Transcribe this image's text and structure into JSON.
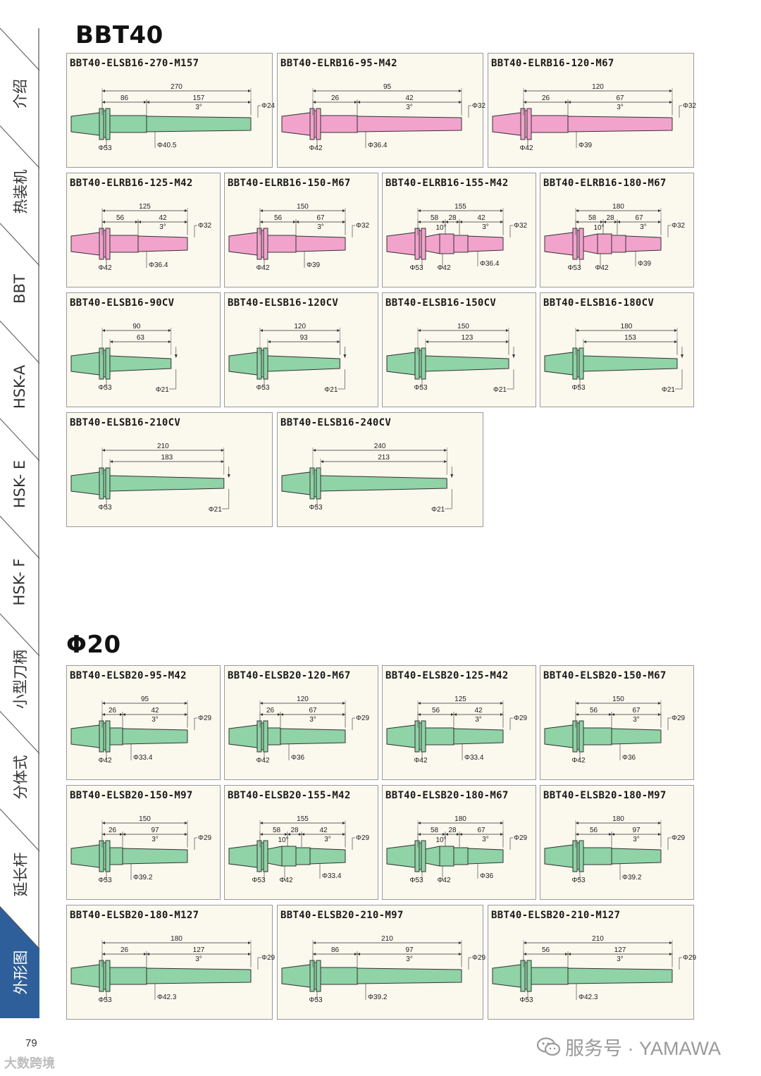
{
  "sidebar": {
    "items": [
      {
        "label": "介绍",
        "active": false
      },
      {
        "label": "热装机",
        "active": false
      },
      {
        "label": "BBT",
        "active": false
      },
      {
        "label": "HSK-A",
        "active": false
      },
      {
        "label": "HSK- E",
        "active": false
      },
      {
        "label": "HSK- F",
        "active": false
      },
      {
        "label": "小型刀柄",
        "active": false
      },
      {
        "label": "分体式",
        "active": false
      },
      {
        "label": "延长杆",
        "active": false
      },
      {
        "label": "外形图",
        "active": true
      }
    ],
    "active_color": "#2f5f9a"
  },
  "colors": {
    "green": "#8fd3a6",
    "pink": "#f2a3cc",
    "card_bg": "#fbf8ee"
  },
  "sections": [
    {
      "title": "BBT40",
      "cards": [
        {
          "model": "BBT40-ELSB16-270-M157",
          "color": "green",
          "kind": "step",
          "labels": {
            "total": "270",
            "a": "86",
            "b": "157",
            "angle": "3°",
            "tip": "Φ24",
            "flange": "Φ53",
            "body": "Φ40.5"
          }
        },
        {
          "model": "BBT40-ELRB16-95-M42",
          "color": "pink",
          "kind": "step",
          "labels": {
            "total": "95",
            "a": "26",
            "b": "42",
            "angle": "3°",
            "tip": "Φ32",
            "flange": "Φ42",
            "body": "Φ36.4"
          }
        },
        {
          "model": "BBT40-ELRB16-120-M67",
          "color": "pink",
          "kind": "step",
          "labels": {
            "total": "120",
            "a": "26",
            "b": "67",
            "angle": "3°",
            "tip": "Φ32",
            "flange": "Φ42",
            "body": "Φ39"
          }
        },
        {
          "model": "BBT40-ELRB16-125-M42",
          "color": "pink",
          "kind": "step",
          "labels": {
            "total": "125",
            "a": "56",
            "b": "42",
            "angle": "3°",
            "tip": "Φ32",
            "flange": "Φ42",
            "body": "Φ36.4"
          }
        },
        {
          "model": "BBT40-ELRB16-150-M67",
          "color": "pink",
          "kind": "step",
          "labels": {
            "total": "150",
            "a": "56",
            "b": "67",
            "angle": "3°",
            "tip": "Φ32",
            "flange": "Φ42",
            "body": "Φ39"
          }
        },
        {
          "model": "BBT40-ELRB16-155-M42",
          "color": "pink",
          "kind": "triple",
          "labels": {
            "total": "155",
            "a": "58",
            "m": "28",
            "b": "42",
            "ang10": "10°",
            "angle": "3°",
            "tip": "Φ32",
            "flange": "Φ53",
            "f2": "Φ42",
            "body": "Φ36.4"
          }
        },
        {
          "model": "BBT40-ELRB16-180-M67",
          "color": "pink",
          "kind": "triple",
          "labels": {
            "total": "180",
            "a": "58",
            "m": "28",
            "b": "67",
            "ang10": "10°",
            "angle": "3°",
            "tip": "Φ32",
            "flange": "Φ53",
            "f2": "Φ42",
            "body": "Φ39"
          }
        },
        {
          "model": "BBT40-ELSB16-90CV",
          "color": "green",
          "kind": "cv",
          "labels": {
            "total": "90",
            "inner": "63",
            "flange": "Φ53",
            "tip": "Φ21"
          }
        },
        {
          "model": "BBT40-ELSB16-120CV",
          "color": "green",
          "kind": "cv",
          "labels": {
            "total": "120",
            "inner": "93",
            "flange": "Φ53",
            "tip": "Φ21"
          }
        },
        {
          "model": "BBT40-ELSB16-150CV",
          "color": "green",
          "kind": "cv",
          "labels": {
            "total": "150",
            "inner": "123",
            "flange": "Φ53",
            "tip": "Φ21"
          }
        },
        {
          "model": "BBT40-ELSB16-180CV",
          "color": "green",
          "kind": "cv",
          "labels": {
            "total": "180",
            "inner": "153",
            "flange": "Φ53",
            "tip": "Φ21"
          }
        },
        {
          "model": "BBT40-ELSB16-210CV",
          "color": "green",
          "kind": "cv",
          "labels": {
            "total": "210",
            "inner": "183",
            "flange": "Φ53",
            "tip": "Φ21"
          }
        },
        {
          "model": "BBT40-ELSB16-240CV",
          "color": "green",
          "kind": "cv",
          "labels": {
            "total": "240",
            "inner": "213",
            "flange": "Φ53",
            "tip": "Φ21"
          }
        }
      ]
    },
    {
      "title": "Φ20",
      "cards": [
        {
          "model": "BBT40-ELSB20-95-M42",
          "color": "green",
          "kind": "step",
          "labels": {
            "total": "95",
            "a": "26",
            "b": "42",
            "angle": "3°",
            "tip": "Φ29",
            "flange": "Φ42",
            "body": "Φ33.4"
          }
        },
        {
          "model": "BBT40-ELSB20-120-M67",
          "color": "green",
          "kind": "step",
          "labels": {
            "total": "120",
            "a": "26",
            "b": "67",
            "angle": "3°",
            "tip": "Φ29",
            "flange": "Φ42",
            "body": "Φ36"
          }
        },
        {
          "model": "BBT40-ELSB20-125-M42",
          "color": "green",
          "kind": "step",
          "labels": {
            "total": "125",
            "a": "56",
            "b": "42",
            "angle": "3°",
            "tip": "Φ29",
            "flange": "Φ42",
            "body": "Φ33.4"
          }
        },
        {
          "model": "BBT40-ELSB20-150-M67",
          "color": "green",
          "kind": "step",
          "labels": {
            "total": "150",
            "a": "56",
            "b": "67",
            "angle": "3°",
            "tip": "Φ29",
            "flange": "Φ42",
            "body": "Φ36"
          }
        },
        {
          "model": "BBT40-ELSB20-150-M97",
          "color": "green",
          "kind": "step",
          "labels": {
            "total": "150",
            "a": "26",
            "b": "97",
            "angle": "3°",
            "tip": "Φ29",
            "flange": "Φ53",
            "body": "Φ39.2"
          }
        },
        {
          "model": "BBT40-ELSB20-155-M42",
          "color": "green",
          "kind": "triple",
          "labels": {
            "total": "155",
            "a": "58",
            "m": "28",
            "b": "42",
            "ang10": "10°",
            "angle": "3°",
            "tip": "Φ29",
            "flange": "Φ53",
            "f2": "Φ42",
            "body": "Φ33.4"
          }
        },
        {
          "model": "BBT40-ELSB20-180-M67",
          "color": "green",
          "kind": "triple",
          "labels": {
            "total": "180",
            "a": "58",
            "m": "28",
            "b": "67",
            "ang10": "10°",
            "angle": "3°",
            "tip": "Φ29",
            "flange": "Φ53",
            "f2": "Φ42",
            "body": "Φ36"
          }
        },
        {
          "model": "BBT40-ELSB20-180-M97",
          "color": "green",
          "kind": "step",
          "labels": {
            "total": "180",
            "a": "56",
            "b": "97",
            "angle": "3°",
            "tip": "Φ29",
            "flange": "Φ53",
            "body": "Φ39.2"
          }
        },
        {
          "model": "BBT40-ELSB20-180-M127",
          "color": "green",
          "kind": "step",
          "labels": {
            "total": "180",
            "a": "26",
            "b": "127",
            "angle": "3°",
            "tip": "Φ29",
            "flange": "Φ53",
            "body": "Φ42.3"
          }
        },
        {
          "model": "BBT40-ELSB20-210-M97",
          "color": "green",
          "kind": "step",
          "labels": {
            "total": "210",
            "a": "86",
            "b": "97",
            "angle": "3°",
            "tip": "Φ29",
            "flange": "Φ53",
            "body": "Φ39.2"
          }
        },
        {
          "model": "BBT40-ELSB20-210-M127",
          "color": "green",
          "kind": "step",
          "labels": {
            "total": "210",
            "a": "56",
            "b": "127",
            "angle": "3°",
            "tip": "Φ29",
            "flange": "Φ53",
            "body": "Φ42.3"
          }
        }
      ]
    }
  ],
  "footer": {
    "page_number": "79",
    "watermark": "大数跨境",
    "service": "服务号 · YAMAWA"
  }
}
